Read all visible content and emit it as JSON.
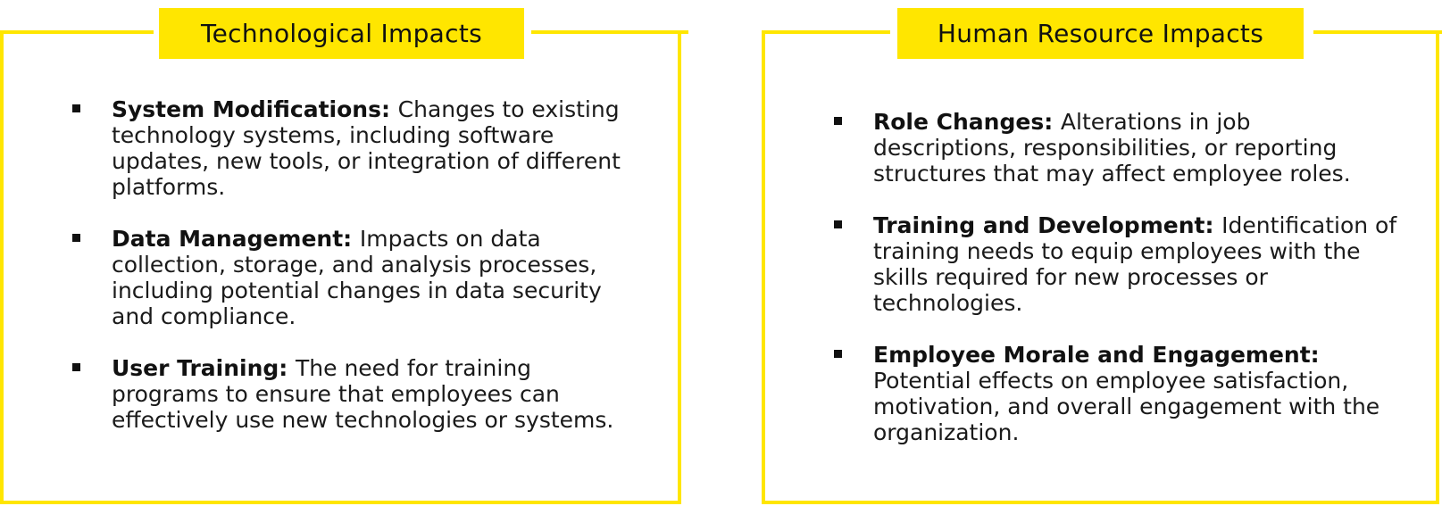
{
  "colors": {
    "accent": "#ffe600",
    "text": "#1a1a1a",
    "background": "#ffffff"
  },
  "technological": {
    "title": "Technological Impacts",
    "items": [
      {
        "term": "System Modifications:",
        "text": "Changes to existing technology systems, including software updates, new tools, or integration of different platforms."
      },
      {
        "term": "Data Management:",
        "text": "Impacts on data collection, storage, and analysis processes, including potential changes in data security and compliance."
      },
      {
        "term": "User Training:",
        "text": "The need for training programs to ensure that employees can effectively use new technologies or systems."
      }
    ]
  },
  "human_resource": {
    "title": "Human Resource Impacts",
    "items": [
      {
        "term": "Role Changes:",
        "text": "Alterations in job descriptions, responsibilities, or reporting structures that may affect employee roles."
      },
      {
        "term": "Training and Development:",
        "text": "Identification of training needs to equip employees with the skills required for new processes or technologies."
      },
      {
        "term": "Employee Morale and Engagement:",
        "text": "Potential effects on employee satisfaction, motivation, and overall engagement with the organization."
      }
    ]
  }
}
